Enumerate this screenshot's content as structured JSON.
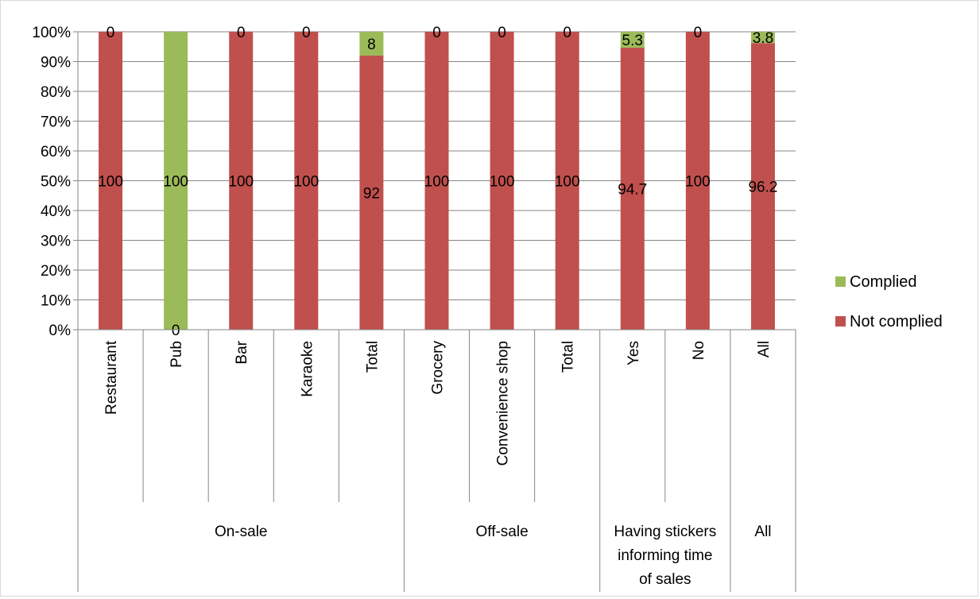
{
  "chart_data": {
    "type": "bar",
    "stacked": true,
    "percent_stacked": true,
    "categories": [
      "Restaurant",
      "Pub",
      "Bar",
      "Karaoke",
      "Total",
      "Grocery",
      "Convenience shop",
      "Total",
      "Yes",
      "No",
      "All"
    ],
    "groups": [
      {
        "label": "On-sale",
        "span": 5
      },
      {
        "label": "Off-sale",
        "span": 3
      },
      {
        "label": "Having stickers informing time of sales",
        "label_lines": [
          "Having stickers",
          "informing time",
          "of sales"
        ],
        "span": 2
      },
      {
        "label": "All",
        "span": 1
      }
    ],
    "series": [
      {
        "name": "Not complied",
        "color": "#c0504d",
        "values": [
          100,
          0,
          100,
          100,
          92,
          100,
          100,
          100,
          94.7,
          100,
          96.2
        ]
      },
      {
        "name": "Complied",
        "color": "#9bbb59",
        "values": [
          0,
          100,
          0,
          0,
          8,
          0,
          0,
          0,
          5.3,
          0,
          3.8
        ]
      }
    ],
    "data_labels": {
      "Not complied": [
        "100",
        "0",
        "100",
        "100",
        "92",
        "100",
        "100",
        "100",
        "94.7",
        "100",
        "96.2"
      ],
      "Complied": [
        "0",
        "100",
        "0",
        "0",
        "8",
        "0",
        "0",
        "0",
        "5.3",
        "0",
        "3.8"
      ]
    },
    "ylim": [
      0,
      100
    ],
    "yticks": [
      "0%",
      "10%",
      "20%",
      "30%",
      "40%",
      "50%",
      "60%",
      "70%",
      "80%",
      "90%",
      "100%"
    ],
    "grid": true,
    "legend_position": "right",
    "legend": [
      "Complied",
      "Not complied"
    ]
  }
}
